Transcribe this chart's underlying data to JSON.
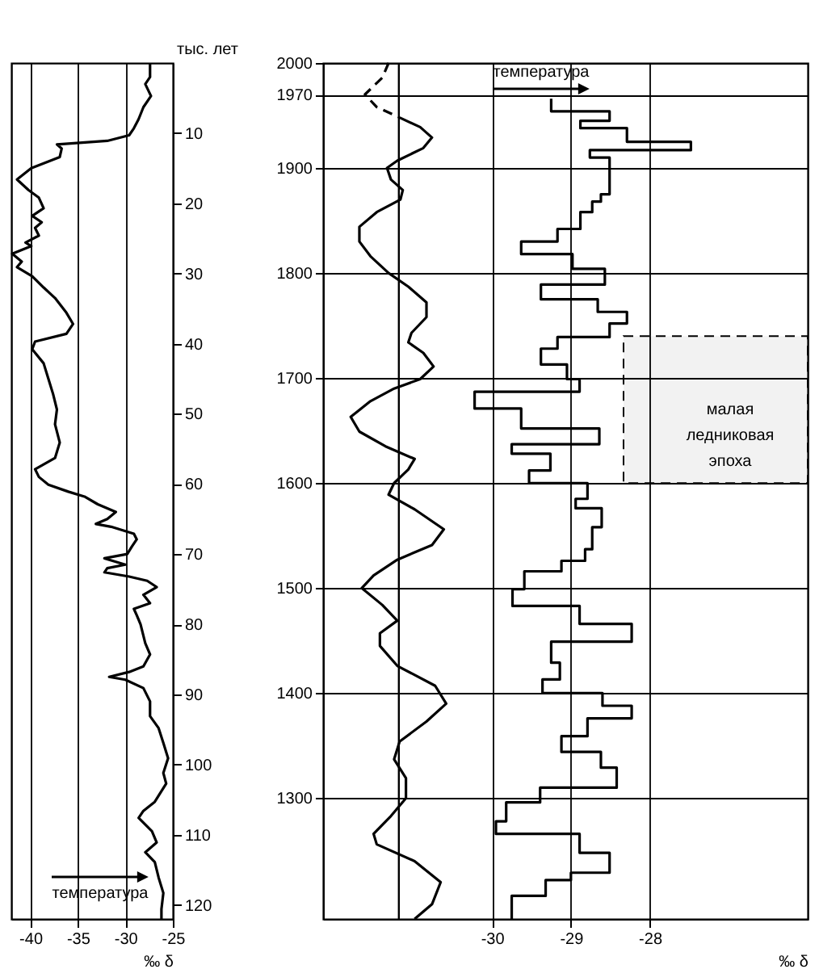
{
  "chart_data": [
    {
      "type": "line",
      "orientation": "horizontal",
      "xlabel": "‰ δ",
      "ylabel": "тыс. лет",
      "color": "#000000",
      "x": [
        0,
        2,
        3,
        4.7,
        6.3,
        8,
        9.3,
        10.3,
        11.1,
        11.6,
        12.2,
        13.4,
        15,
        16.6,
        18.1,
        19.2,
        20.7,
        21.8,
        22.7,
        23.5,
        24.6,
        25.6,
        26.1,
        27.2,
        28.3,
        29.1,
        30.4,
        32,
        33.5,
        35.6,
        37.2,
        38.6,
        39.7,
        40.8,
        42.8,
        45,
        47.2,
        49.4,
        51.5,
        54.1,
        56.3,
        57.9,
        59,
        60.1,
        61.1,
        61.8,
        62.9,
        64,
        65,
        65.7,
        66.1,
        67.1,
        67.9,
        68.9,
        70,
        70.6,
        71.5,
        72,
        72.6,
        73.2,
        73.8,
        74.7,
        75.8,
        77,
        77.8,
        78.7,
        80,
        82.7,
        84.3,
        86,
        86.8,
        87.5,
        87.9,
        89.1,
        91,
        93.1,
        94.8,
        96.9,
        99.1,
        101.2,
        102.7,
        105.3,
        106.6,
        107.6,
        109.5,
        111.1,
        112.5,
        113.9,
        116.1,
        118.3,
        120.6,
        122
      ],
      "values": [
        -27.4,
        -27.4,
        -27.9,
        -27.3,
        -28.1,
        -28.6,
        -29.1,
        -29.6,
        -31.9,
        -37.2,
        -36.7,
        -36.9,
        -39.9,
        -41.4,
        -40.2,
        -39.1,
        -38.6,
        -39.8,
        -38.8,
        -39.5,
        -39.1,
        -40.5,
        -39.9,
        -41.9,
        -40.9,
        -41.4,
        -39.8,
        -38.6,
        -37.4,
        -36.2,
        -35.5,
        -36.2,
        -39.5,
        -39.8,
        -38.6,
        -38.1,
        -37.6,
        -37.2,
        -37.4,
        -36.9,
        -37.4,
        -39.5,
        -39.1,
        -38.1,
        -36,
        -34.3,
        -32.9,
        -31,
        -31.9,
        -33.1,
        -31.5,
        -29.1,
        -28.8,
        -29.3,
        -29.8,
        -32.2,
        -30,
        -31.9,
        -32.2,
        -29.6,
        -27.7,
        -26.7,
        -28.1,
        -27.4,
        -29.1,
        -28.8,
        -28.4,
        -27.9,
        -27.4,
        -28.1,
        -29.6,
        -31.7,
        -30,
        -28.1,
        -27.4,
        -27.4,
        -26.5,
        -26,
        -25.5,
        -26,
        -25.7,
        -26.9,
        -28.1,
        -28.6,
        -27.2,
        -26.7,
        -27.9,
        -26.9,
        -26.5,
        -26,
        -26.2,
        -26.2
      ],
      "xlim": [
        -42,
        -25
      ],
      "xticks": [
        -40,
        -35,
        -30,
        -25
      ],
      "ylim": [
        122,
        0
      ],
      "yticks": [
        10,
        20,
        30,
        40,
        50,
        60,
        70,
        80,
        90,
        100,
        110,
        120
      ],
      "grid": "x",
      "annotations": [
        "температура"
      ]
    },
    {
      "type": "line",
      "orientation": "horizontal",
      "xlabel": "‰ δ",
      "series": [
        {
          "color": "#000000",
          "x": [
            1948,
            1939,
            1929,
            1919,
            1907,
            1900,
            1889,
            1879,
            1870,
            1858,
            1844,
            1830,
            1816,
            1800,
            1787,
            1772,
            1758,
            1743,
            1734,
            1724,
            1711,
            1699,
            1690,
            1678,
            1663,
            1649,
            1635,
            1623,
            1613,
            1600,
            1589,
            1575,
            1556,
            1541,
            1527,
            1512,
            1500,
            1484,
            1469,
            1457,
            1445,
            1426,
            1407,
            1390,
            1373,
            1354,
            1337,
            1319,
            1300,
            1283,
            1266,
            1256,
            1240,
            1220,
            1199,
            1185
          ],
          "values": [
            -31.17,
            -30.91,
            -30.76,
            -30.87,
            -31.2,
            -31.33,
            -31.28,
            -31.13,
            -31.16,
            -31.46,
            -31.68,
            -31.68,
            -31.54,
            -31.31,
            -31.06,
            -30.83,
            -30.83,
            -31.02,
            -31.06,
            -30.87,
            -30.74,
            -30.91,
            -31.24,
            -31.54,
            -31.79,
            -31.68,
            -31.35,
            -30.98,
            -31.06,
            -31.24,
            -31.31,
            -30.98,
            -30.61,
            -30.76,
            -31.2,
            -31.5,
            -31.65,
            -31.39,
            -31.2,
            -31.42,
            -31.42,
            -31.2,
            -30.72,
            -30.58,
            -30.83,
            -31.17,
            -31.24,
            -31.09,
            -31.09,
            -31.28,
            -31.5,
            -31.46,
            -30.98,
            -30.65,
            -30.76,
            -30.98
          ]
        },
        {
          "line_style": "dashed",
          "color": "#000000",
          "x": [
            2000,
            1986,
            1970,
            1958,
            1948
          ],
          "values": [
            -31.31,
            -31.39,
            -31.61,
            -31.46,
            -31.17
          ]
        },
        {
          "type": "step",
          "color": "#000000",
          "x": [
            1966,
            1954,
            1945,
            1938,
            1925,
            1917,
            1910,
            1875,
            1868,
            1858,
            1842,
            1830,
            1818,
            1804,
            1789,
            1775,
            1763,
            1752,
            1739,
            1728,
            1713,
            1699,
            1687,
            1671,
            1652,
            1637,
            1628,
            1612,
            1600,
            1585,
            1576,
            1558,
            1537,
            1526,
            1516,
            1499,
            1483,
            1466,
            1449,
            1429,
            1413,
            1400,
            1388,
            1376,
            1359,
            1344,
            1329,
            1310,
            1296,
            1278,
            1266,
            1248,
            1229,
            1222,
            1207,
            1185
          ],
          "values": [
            -29.25,
            -28.51,
            -28.88,
            -28.29,
            -27.48,
            -28.76,
            -28.51,
            -28.62,
            -28.73,
            -28.88,
            -29.17,
            -29.63,
            -28.98,
            -28.57,
            -29.38,
            -28.66,
            -28.29,
            -28.51,
            -29.17,
            -29.38,
            -29.05,
            -28.89,
            -30.22,
            -29.63,
            -28.64,
            -29.75,
            -29.26,
            -29.53,
            -28.79,
            -28.94,
            -28.61,
            -28.73,
            -28.82,
            -29.12,
            -29.59,
            -29.74,
            -28.89,
            -28.23,
            -29.25,
            -29.14,
            -29.36,
            -28.6,
            -28.23,
            -28.79,
            -29.12,
            -28.62,
            -28.42,
            -29.39,
            -29.82,
            -29.95,
            -28.89,
            -28.51,
            -29,
            -29.32,
            -29.75,
            -29.75
          ]
        }
      ],
      "xlim": [
        -32.14,
        -26
      ],
      "xticks": [
        -30,
        -29,
        -28
      ],
      "ylim": [
        1185,
        2000
      ],
      "yticks": [
        1300,
        1400,
        1500,
        1600,
        1700,
        1800,
        1900,
        1970,
        2000
      ],
      "grid": true,
      "ref_lines": [
        {
          "axis": "x",
          "value": -31.18,
          "color": "#000000"
        }
      ],
      "bands": [
        {
          "axis": "y",
          "from": 1600,
          "to": 1740,
          "label": "малая ледниковая эпоха"
        }
      ],
      "annotations": [
        "температура"
      ]
    }
  ]
}
